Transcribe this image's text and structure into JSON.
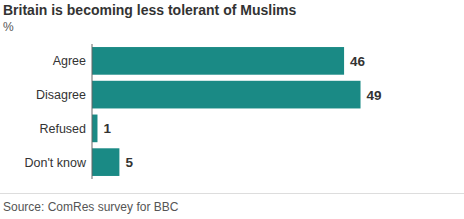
{
  "chart_data": {
    "type": "bar",
    "orientation": "horizontal",
    "title": "Britain is becoming less tolerant of Muslims",
    "subtitle": "%",
    "categories": [
      "Agree",
      "Disagree",
      "Refused",
      "Don't know"
    ],
    "values": [
      46,
      49,
      1,
      5
    ],
    "color": "#1a8a85",
    "xlim": [
      0,
      50
    ],
    "data_labels": true,
    "tick_labels": "y",
    "grid": false,
    "source": "Source: ComRes survey for BBC"
  }
}
